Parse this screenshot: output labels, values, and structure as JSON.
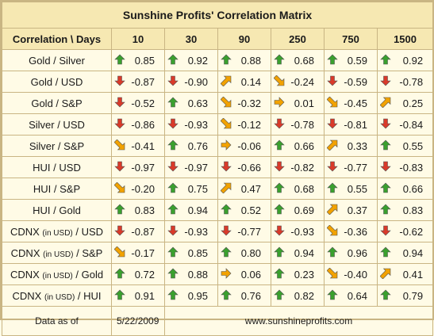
{
  "title": "Sunshine Profits' Correlation Matrix",
  "header": {
    "corner_label": "Correlation \\ Days",
    "periods": [
      "10",
      "30",
      "90",
      "250",
      "750",
      "1500"
    ]
  },
  "arrows": {
    "up": {
      "color": "#3aa02e",
      "icon": "arrow-up-icon"
    },
    "down": {
      "color": "#d93a2a",
      "icon": "arrow-down-icon"
    },
    "up_right": {
      "color": "#f2a200",
      "icon": "arrow-up-right-icon"
    },
    "down_right": {
      "color": "#f2a200",
      "icon": "arrow-down-right-icon"
    },
    "right": {
      "color": "#f2a200",
      "icon": "arrow-right-icon"
    }
  },
  "rows": [
    {
      "label": "Gold / Silver",
      "cells": [
        {
          "v": "0.85",
          "a": "up"
        },
        {
          "v": "0.92",
          "a": "up"
        },
        {
          "v": "0.88",
          "a": "up"
        },
        {
          "v": "0.68",
          "a": "up"
        },
        {
          "v": "0.59",
          "a": "up"
        },
        {
          "v": "0.92",
          "a": "up"
        }
      ]
    },
    {
      "label": "Gold / USD",
      "cells": [
        {
          "v": "-0.87",
          "a": "down"
        },
        {
          "v": "-0.90",
          "a": "down"
        },
        {
          "v": "0.14",
          "a": "up_right"
        },
        {
          "v": "-0.24",
          "a": "down_right"
        },
        {
          "v": "-0.59",
          "a": "down"
        },
        {
          "v": "-0.78",
          "a": "down"
        }
      ]
    },
    {
      "label": "Gold / S&P",
      "cells": [
        {
          "v": "-0.52",
          "a": "down"
        },
        {
          "v": "0.63",
          "a": "up"
        },
        {
          "v": "-0.32",
          "a": "down_right"
        },
        {
          "v": "0.01",
          "a": "right"
        },
        {
          "v": "-0.45",
          "a": "down_right"
        },
        {
          "v": "0.25",
          "a": "up_right"
        }
      ]
    },
    {
      "label": "Silver / USD",
      "cells": [
        {
          "v": "-0.86",
          "a": "down"
        },
        {
          "v": "-0.93",
          "a": "down"
        },
        {
          "v": "-0.12",
          "a": "down_right"
        },
        {
          "v": "-0.78",
          "a": "down"
        },
        {
          "v": "-0.81",
          "a": "down"
        },
        {
          "v": "-0.84",
          "a": "down"
        }
      ]
    },
    {
      "label": "Silver / S&P",
      "cells": [
        {
          "v": "-0.41",
          "a": "down_right"
        },
        {
          "v": "0.76",
          "a": "up"
        },
        {
          "v": "-0.06",
          "a": "right"
        },
        {
          "v": "0.66",
          "a": "up"
        },
        {
          "v": "0.33",
          "a": "up_right"
        },
        {
          "v": "0.55",
          "a": "up"
        }
      ]
    },
    {
      "label": "HUI / USD",
      "cells": [
        {
          "v": "-0.97",
          "a": "down"
        },
        {
          "v": "-0.97",
          "a": "down"
        },
        {
          "v": "-0.66",
          "a": "down"
        },
        {
          "v": "-0.82",
          "a": "down"
        },
        {
          "v": "-0.77",
          "a": "down"
        },
        {
          "v": "-0.83",
          "a": "down"
        }
      ]
    },
    {
      "label": "HUI / S&P",
      "cells": [
        {
          "v": "-0.20",
          "a": "down_right"
        },
        {
          "v": "0.75",
          "a": "up"
        },
        {
          "v": "0.47",
          "a": "up_right"
        },
        {
          "v": "0.68",
          "a": "up"
        },
        {
          "v": "0.55",
          "a": "up"
        },
        {
          "v": "0.66",
          "a": "up"
        }
      ]
    },
    {
      "label": "HUI / Gold",
      "cells": [
        {
          "v": "0.83",
          "a": "up"
        },
        {
          "v": "0.94",
          "a": "up"
        },
        {
          "v": "0.52",
          "a": "up"
        },
        {
          "v": "0.69",
          "a": "up"
        },
        {
          "v": "0.37",
          "a": "up_right"
        },
        {
          "v": "0.83",
          "a": "up"
        }
      ]
    },
    {
      "label_pre": "CDNX",
      "label_small": "(in USD)",
      "label_post": "/ USD",
      "cells": [
        {
          "v": "-0.87",
          "a": "down"
        },
        {
          "v": "-0.93",
          "a": "down"
        },
        {
          "v": "-0.77",
          "a": "down"
        },
        {
          "v": "-0.93",
          "a": "down"
        },
        {
          "v": "-0.36",
          "a": "down_right"
        },
        {
          "v": "-0.62",
          "a": "down"
        }
      ]
    },
    {
      "label_pre": "CDNX",
      "label_small": "(in USD)",
      "label_post": "/ S&P",
      "cells": [
        {
          "v": "-0.17",
          "a": "down_right"
        },
        {
          "v": "0.85",
          "a": "up"
        },
        {
          "v": "0.80",
          "a": "up"
        },
        {
          "v": "0.94",
          "a": "up"
        },
        {
          "v": "0.96",
          "a": "up"
        },
        {
          "v": "0.94",
          "a": "up"
        }
      ]
    },
    {
      "label_pre": "CDNX",
      "label_small": "(in USD)",
      "label_post": "/ Gold",
      "cells": [
        {
          "v": "0.72",
          "a": "up"
        },
        {
          "v": "0.88",
          "a": "up"
        },
        {
          "v": "0.06",
          "a": "right"
        },
        {
          "v": "0.23",
          "a": "up"
        },
        {
          "v": "-0.40",
          "a": "down_right"
        },
        {
          "v": "0.41",
          "a": "up_right"
        }
      ]
    },
    {
      "label_pre": "CDNX",
      "label_small": "(in USD)",
      "label_post": "/ HUI",
      "cells": [
        {
          "v": "0.91",
          "a": "up"
        },
        {
          "v": "0.95",
          "a": "up"
        },
        {
          "v": "0.76",
          "a": "up"
        },
        {
          "v": "0.82",
          "a": "up"
        },
        {
          "v": "0.64",
          "a": "up"
        },
        {
          "v": "0.79",
          "a": "up"
        }
      ]
    }
  ],
  "footer": {
    "label": "Data as of",
    "date": "5/22/2009",
    "website": "www.sunshineprofits.com"
  }
}
